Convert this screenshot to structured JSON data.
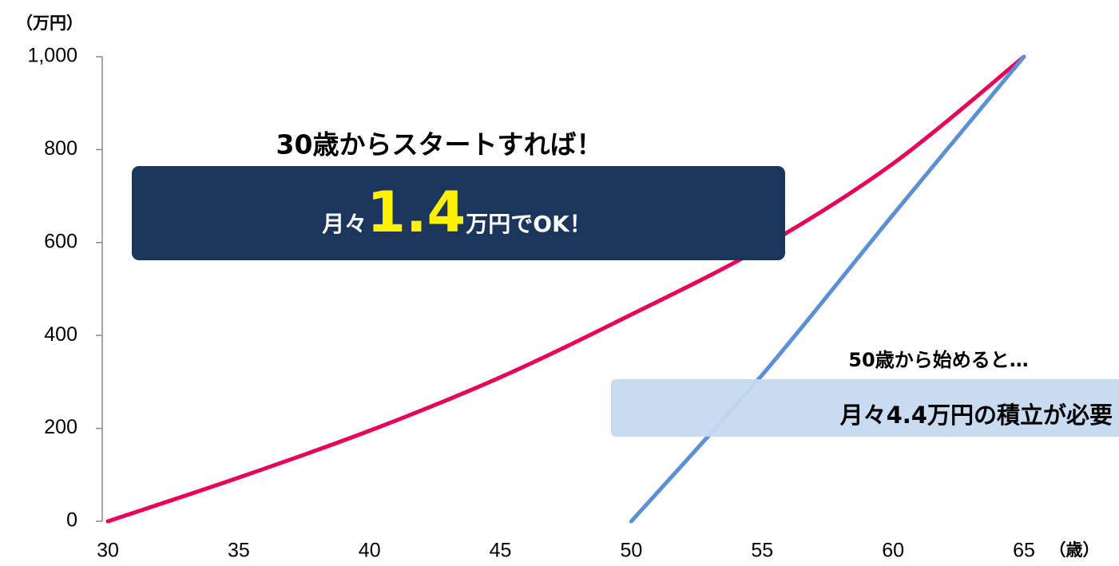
{
  "chart_data": {
    "type": "line",
    "y_axis_label": "（万円）",
    "x_axis_label": "（歳）",
    "x": [
      30,
      35,
      40,
      45,
      50,
      55,
      60,
      65
    ],
    "series": [
      {
        "name": "30歳から",
        "color": "#e8005a",
        "values": [
          0,
          94,
          195,
          310,
          445,
          590,
          770,
          1000
        ]
      },
      {
        "name": "50歳から",
        "color": "#5b8fd6",
        "values": [
          null,
          null,
          null,
          null,
          0,
          315,
          660,
          1000
        ]
      }
    ],
    "xlim": [
      30,
      65
    ],
    "xticks": [
      30,
      35,
      40,
      45,
      50,
      55,
      60,
      65
    ],
    "ylim": [
      0,
      1000
    ],
    "yticks": [
      0,
      200,
      400,
      600,
      800,
      {
        "value": 1000,
        "label": "1,000"
      }
    ],
    "grid": false,
    "annotations": {
      "start30_heading": "30歳からスタートすれば！",
      "start30_prefix": "月々",
      "start30_amount": "1.4",
      "start30_suffix": "万円でOK！",
      "start50_heading": "50歳から始めると…",
      "start50_box": "月々4.4万円の積立が必要"
    }
  }
}
